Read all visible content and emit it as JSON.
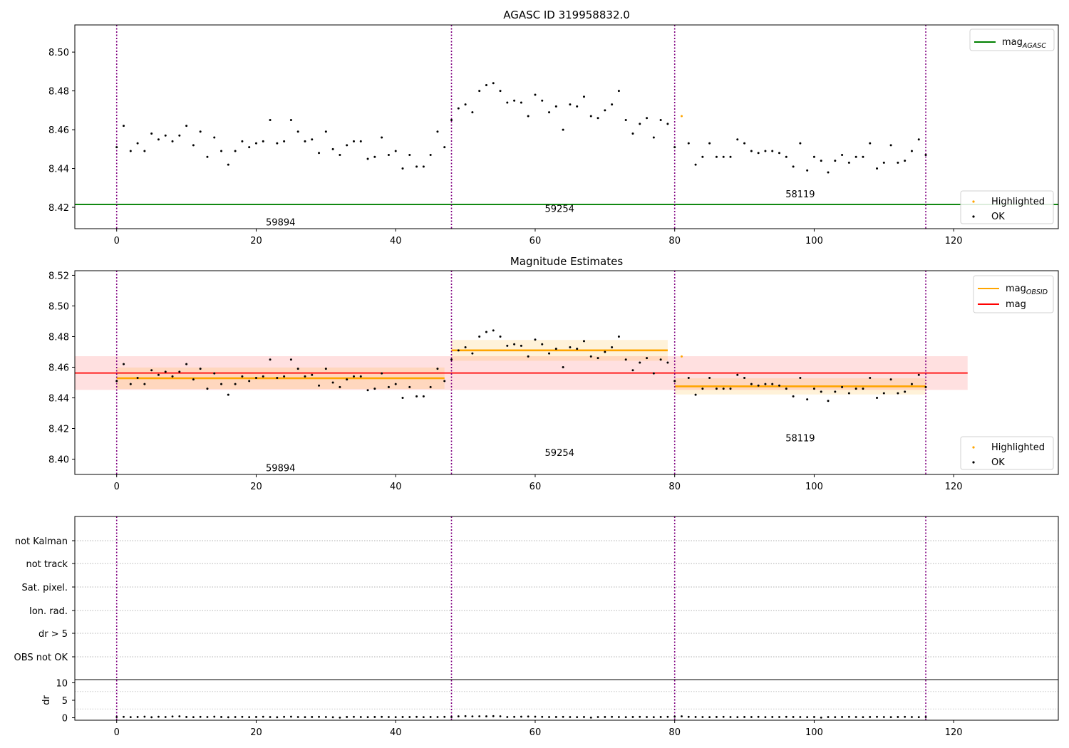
{
  "chart_data": [
    {
      "type": "scatter",
      "title": "AGASC ID 319958832.0",
      "xlim": [
        -6,
        135
      ],
      "ylim": [
        8.409,
        8.514
      ],
      "xticks": [
        0,
        20,
        40,
        60,
        80,
        100,
        120
      ],
      "yticks": [
        8.42,
        8.44,
        8.46,
        8.48,
        8.5
      ],
      "ytick_labels": [
        "8.42",
        "8.44",
        "8.46",
        "8.48",
        "8.50"
      ],
      "vlines": [
        0,
        48,
        80,
        116
      ],
      "vline_color": "#800080",
      "obsid_labels": [
        {
          "text": "59894",
          "x": 23.5,
          "y": 8.4125
        },
        {
          "text": "59254",
          "x": 63.5,
          "y": 8.4195
        },
        {
          "text": "58119",
          "x": 98,
          "y": 8.427
        }
      ],
      "lines": [
        {
          "name": "mag_AGASC",
          "y": 8.4215,
          "x": [
            -6,
            135
          ],
          "color": "#008000"
        }
      ],
      "legend": {
        "placement": "top-right",
        "entries": [
          {
            "main": "mag",
            "sub": "AGASC",
            "color": "#008000"
          }
        ]
      },
      "legend2": {
        "placement": "bottom-right",
        "entries": [
          {
            "label": "Highlighted",
            "color": "#ffa500"
          },
          {
            "label": "OK",
            "color": "#000000"
          }
        ]
      },
      "series": [
        {
          "name": "OK",
          "color": "#000000"
        },
        {
          "name": "Highlighted",
          "color": "#ffa500"
        }
      ]
    },
    {
      "type": "scatter",
      "title": "Magnitude Estimates",
      "xlim": [
        -6,
        135
      ],
      "ylim": [
        8.39,
        8.523
      ],
      "xticks": [
        0,
        20,
        40,
        60,
        80,
        100,
        120
      ],
      "yticks": [
        8.4,
        8.42,
        8.44,
        8.46,
        8.48,
        8.5,
        8.52
      ],
      "ytick_labels": [
        "8.40",
        "8.42",
        "8.44",
        "8.46",
        "8.48",
        "8.50",
        "8.52"
      ],
      "vlines": [
        0,
        48,
        80,
        116
      ],
      "vline_color": "#800080",
      "obsid_labels": [
        {
          "text": "59894",
          "x": 23.5,
          "y": 8.3945
        },
        {
          "text": "59254",
          "x": 63.5,
          "y": 8.4045
        },
        {
          "text": "58119",
          "x": 98,
          "y": 8.414
        }
      ],
      "mag_band": {
        "x": [
          -6,
          122
        ],
        "y": 8.4562,
        "lo": 8.4452,
        "hi": 8.4672,
        "color": "#ff0000"
      },
      "obsid_segments": [
        {
          "x": [
            0,
            47
          ],
          "y": 8.4528,
          "lo": 8.4458,
          "hi": 8.4598
        },
        {
          "x": [
            48,
            79
          ],
          "y": 8.471,
          "lo": 8.4642,
          "hi": 8.4778
        },
        {
          "x": [
            80,
            116
          ],
          "y": 8.4475,
          "lo": 8.4422,
          "hi": 8.4528
        }
      ],
      "legend": {
        "placement": "top-right",
        "entries": [
          {
            "main": "mag",
            "sub": "OBSID",
            "color": "#ffa500"
          },
          {
            "main": "mag",
            "sub": "",
            "color": "#ff0000"
          }
        ]
      },
      "legend2": {
        "placement": "bottom-right",
        "entries": [
          {
            "label": "Highlighted",
            "color": "#ffa500"
          },
          {
            "label": "OK",
            "color": "#000000"
          }
        ]
      }
    },
    {
      "type": "scatter",
      "xlim": [
        -6,
        135
      ],
      "xticks": [
        0,
        20,
        40,
        60,
        80,
        100,
        120
      ],
      "flag_labels": [
        "not Kalman",
        "not track",
        "Sat. pixel.",
        "Ion. rad.",
        "dr > 5",
        "OBS not OK"
      ],
      "dr_ylabel": "dr",
      "dr_ylim": [
        -0.3,
        10.3
      ],
      "dr_yticks": [
        0,
        5,
        10
      ],
      "vlines": [
        0,
        48,
        80,
        116
      ],
      "vline_color": "#800080",
      "dr_values": [
        0.2,
        0.25,
        0.18,
        0.22,
        0.3,
        0.15,
        0.28,
        0.2,
        0.35,
        0.4,
        0.22,
        0.18,
        0.25,
        0.2,
        0.3,
        0.22,
        0.15,
        0.2,
        0.25,
        0.18,
        0.22,
        0.28,
        0.2,
        0.15,
        0.25,
        0.3,
        0.2,
        0.18,
        0.22,
        0.25,
        0.2,
        0.15,
        0.05,
        0.22,
        0.25,
        0.2,
        0.18,
        0.22,
        0.25,
        0.2,
        0.18,
        0.22,
        0.2,
        0.25,
        0.18,
        0.22,
        0.2,
        0.25,
        0.22,
        0.4,
        0.45,
        0.38,
        0.42,
        0.4,
        0.45,
        0.42,
        0.2,
        0.25,
        0.3,
        0.35,
        0.3,
        0.25,
        0.2,
        0.22,
        0.25,
        0.2,
        0.18,
        0.22,
        0.05,
        0.2,
        0.22,
        0.25,
        0.2,
        0.18,
        0.22,
        0.25,
        0.2,
        0.18,
        0.22,
        0.25,
        0.3,
        0.4,
        0.25,
        0.22,
        0.2,
        0.18,
        0.22,
        0.25,
        0.2,
        0.18,
        0.22,
        0.2,
        0.25,
        0.18,
        0.22,
        0.2,
        0.25,
        0.22,
        0.2,
        0.18,
        0.22,
        0.05,
        0.2,
        0.18,
        0.22,
        0.25,
        0.2,
        0.18,
        0.22,
        0.25,
        0.2,
        0.18,
        0.22,
        0.25,
        0.2,
        0.18,
        0.22
      ]
    }
  ],
  "mag_points": [
    8.451,
    8.462,
    8.449,
    8.453,
    8.449,
    8.458,
    8.455,
    8.457,
    8.454,
    8.457,
    8.462,
    8.452,
    8.459,
    8.446,
    8.456,
    8.449,
    8.442,
    8.449,
    8.454,
    8.451,
    8.453,
    8.454,
    8.465,
    8.453,
    8.454,
    8.465,
    8.459,
    8.454,
    8.455,
    8.448,
    8.459,
    8.45,
    8.447,
    8.452,
    8.454,
    8.454,
    8.445,
    8.446,
    8.456,
    8.447,
    8.449,
    8.44,
    8.447,
    8.441,
    8.441,
    8.447,
    8.459,
    8.451,
    8.465,
    8.471,
    8.473,
    8.469,
    8.48,
    8.483,
    8.484,
    8.48,
    8.474,
    8.475,
    8.474,
    8.467,
    8.478,
    8.475,
    8.469,
    8.472,
    8.46,
    8.473,
    8.472,
    8.477,
    8.467,
    8.466,
    8.47,
    8.473,
    8.48,
    8.465,
    8.458,
    8.463,
    8.466,
    8.456,
    8.465,
    8.463,
    8.451,
    8.467,
    8.453,
    8.442,
    8.446,
    8.453,
    8.446,
    8.446,
    8.446,
    8.455,
    8.453,
    8.449,
    8.448,
    8.449,
    8.449,
    8.448,
    8.446,
    8.441,
    8.453,
    8.439,
    8.446,
    8.444,
    8.438,
    8.444,
    8.447,
    8.443,
    8.446,
    8.446,
    8.453,
    8.44,
    8.443,
    8.452,
    8.443,
    8.444,
    8.449,
    8.455,
    8.447
  ],
  "highlighted_index": [
    81
  ]
}
